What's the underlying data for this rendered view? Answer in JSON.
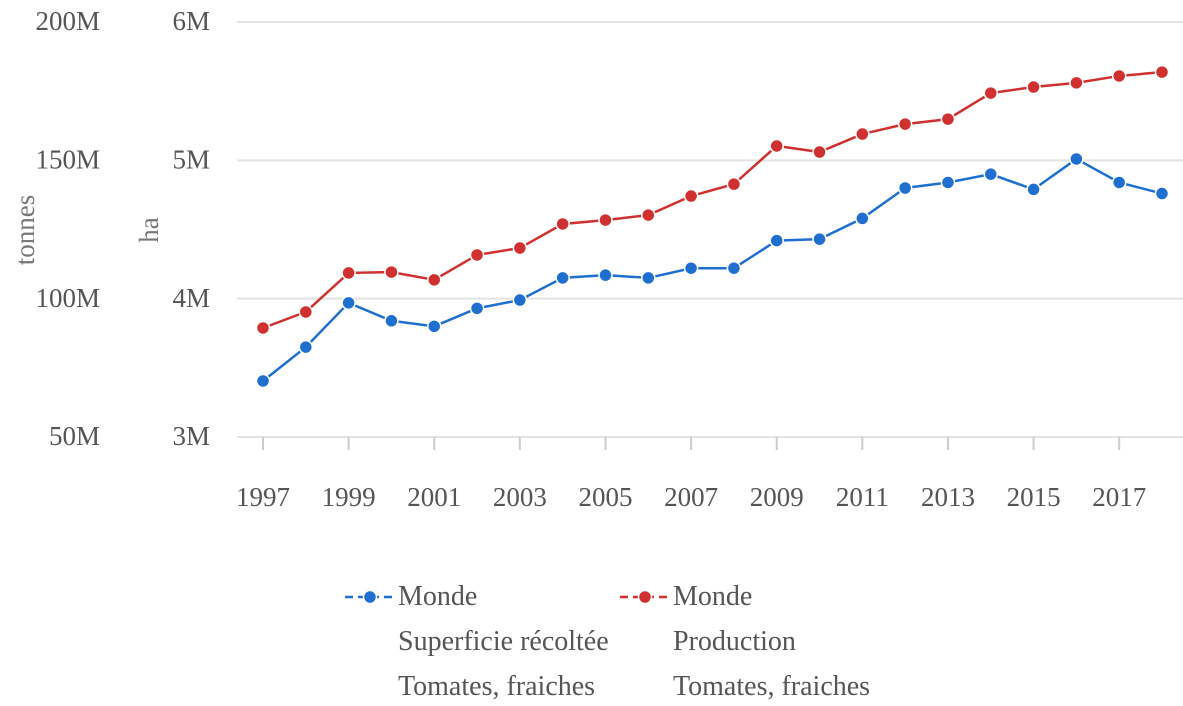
{
  "chart_data": {
    "type": "line",
    "x": [
      1997,
      1998,
      1999,
      2000,
      2001,
      2002,
      2003,
      2004,
      2005,
      2006,
      2007,
      2008,
      2009,
      2010,
      2011,
      2012,
      2013,
      2014,
      2015,
      2016,
      2017,
      2018
    ],
    "xlim": [
      1997,
      2018
    ],
    "xticks": [
      1997,
      1999,
      2001,
      2003,
      2005,
      2007,
      2009,
      2011,
      2013,
      2015,
      2017
    ],
    "ylabel": "tonnes",
    "ylim": [
      50000000,
      200000000
    ],
    "yticks": [
      {
        "value": 50000000,
        "label": "50M"
      },
      {
        "value": 100000000,
        "label": "100M"
      },
      {
        "value": 150000000,
        "label": "150M"
      },
      {
        "value": 200000000,
        "label": "200M"
      }
    ],
    "y2label": "ha",
    "y2lim": [
      3000000,
      6000000
    ],
    "y2ticks": [
      {
        "value": 3000000,
        "label": "3M"
      },
      {
        "value": 4000000,
        "label": "4M"
      },
      {
        "value": 5000000,
        "label": "5M"
      },
      {
        "value": 6000000,
        "label": "6M"
      }
    ],
    "grid": true,
    "series": [
      {
        "name": "Monde\nSuperficie récoltée\nTomates, fraiches",
        "color": "#1f6fd1",
        "axis": "y2",
        "values": [
          3405000,
          3650000,
          3970000,
          3840000,
          3800000,
          3930000,
          3990000,
          4150000,
          4170000,
          4150000,
          4220000,
          4220000,
          4420000,
          4430000,
          4580000,
          4800000,
          4840000,
          4900000,
          4790000,
          5010000,
          4840000,
          4760000
        ]
      },
      {
        "name": "Monde\nProduction\nTomates, fraiches",
        "color": "#d0302f",
        "values": [
          89400000,
          95200000,
          109300000,
          109600000,
          106800000,
          115800000,
          118300000,
          127000000,
          128400000,
          130200000,
          137100000,
          141400000,
          155200000,
          153000000,
          159500000,
          163100000,
          164900000,
          174300000,
          176500000,
          178000000,
          180500000,
          181900000
        ]
      }
    ]
  }
}
